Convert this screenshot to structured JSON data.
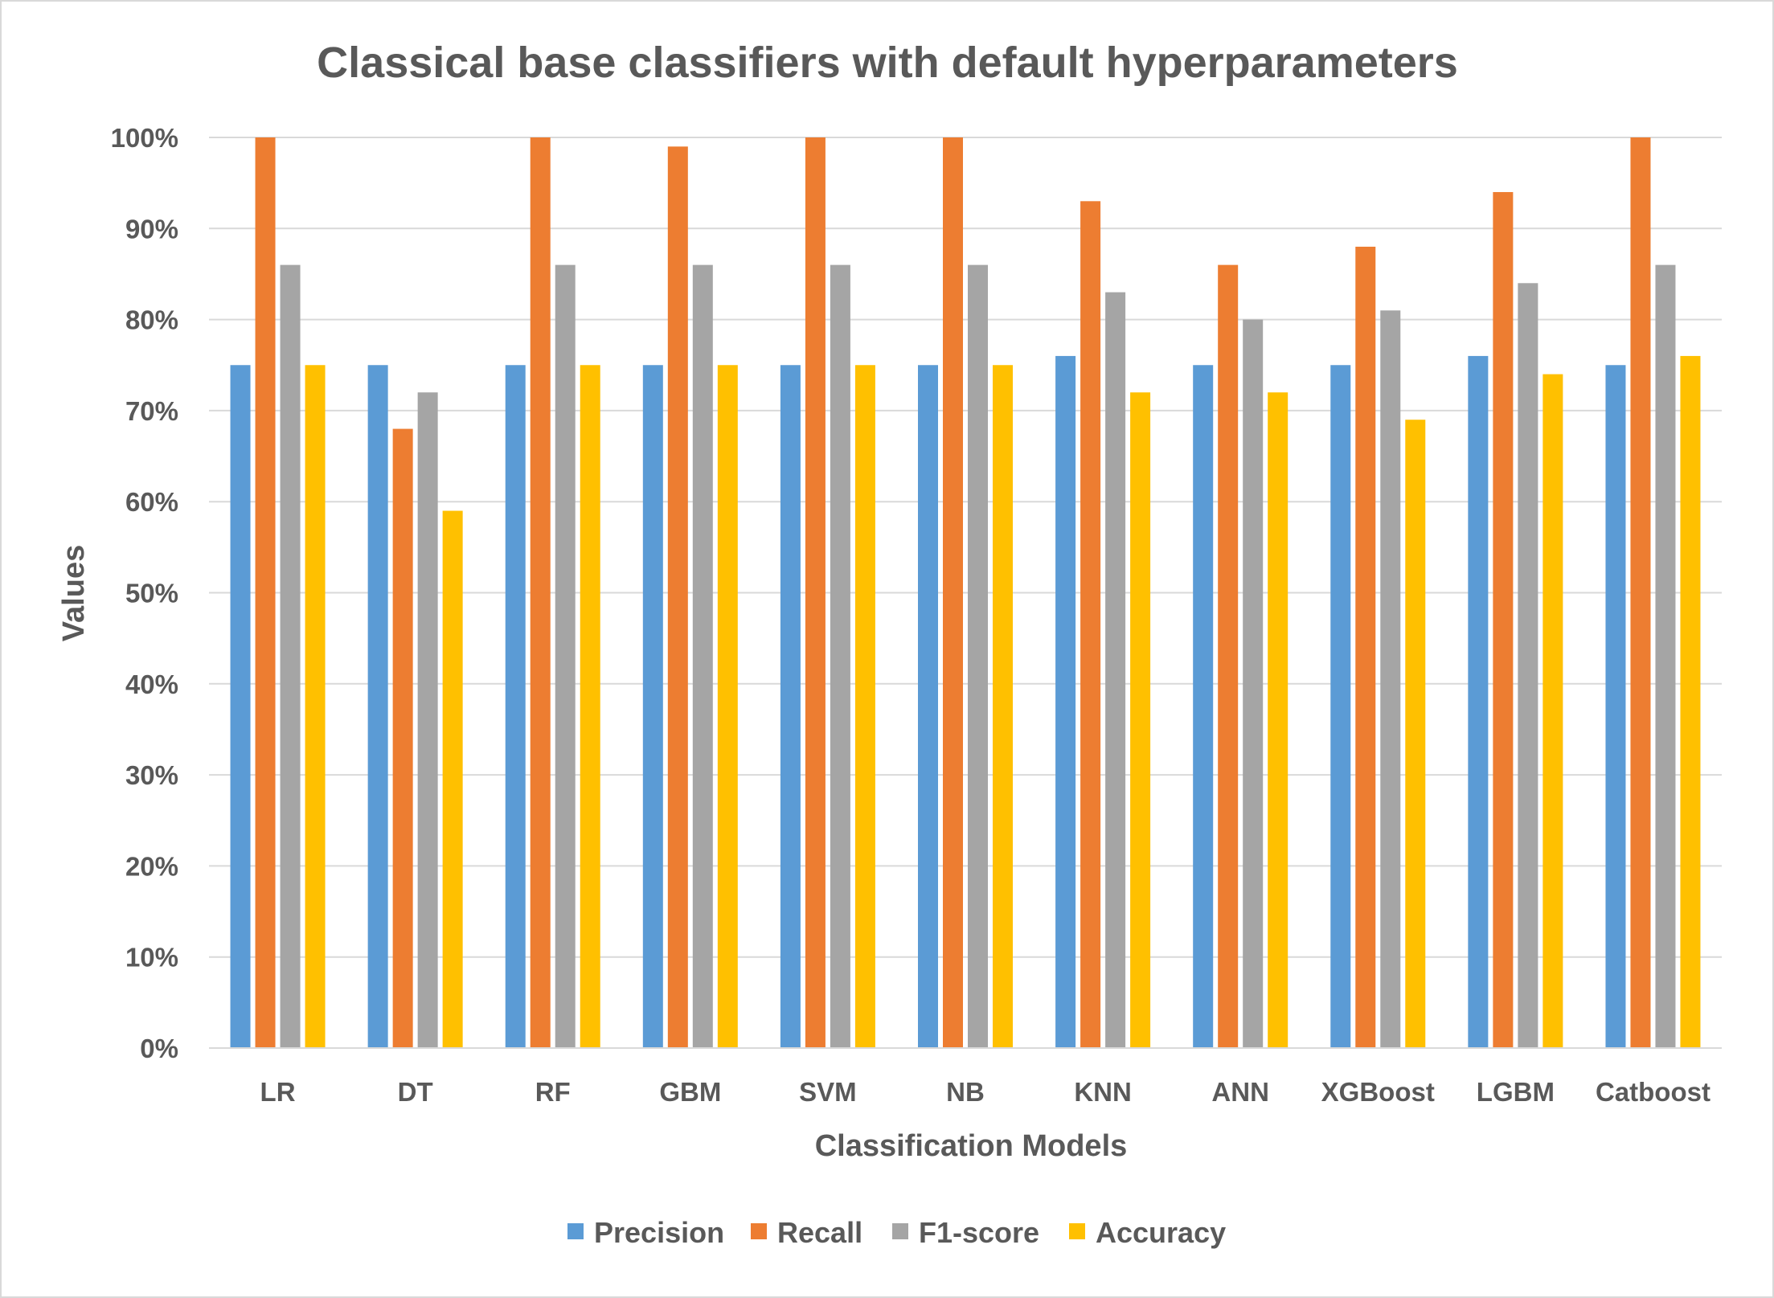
{
  "chart_data": {
    "type": "bar",
    "title": "Classical base classifiers with default hyperparameters",
    "xlabel": "Classification Models",
    "ylabel": "Values",
    "ylim": [
      0,
      100
    ],
    "y_tick_step": 10,
    "y_tick_suffix": "%",
    "grid": true,
    "legend_position": "bottom",
    "categories": [
      "LR",
      "DT",
      "RF",
      "GBM",
      "SVM",
      "NB",
      "KNN",
      "ANN",
      "XGBoost",
      "LGBM",
      "Catboost"
    ],
    "series": [
      {
        "name": "Precision",
        "color": "#5b9bd5",
        "values": [
          75,
          75,
          75,
          75,
          75,
          75,
          76,
          75,
          75,
          76,
          75
        ]
      },
      {
        "name": "Recall",
        "color": "#ed7d31",
        "values": [
          100,
          68,
          100,
          99,
          100,
          100,
          93,
          86,
          88,
          94,
          100
        ]
      },
      {
        "name": "F1-score",
        "color": "#a5a5a5",
        "values": [
          86,
          72,
          86,
          86,
          86,
          86,
          83,
          80,
          81,
          84,
          86
        ]
      },
      {
        "name": "Accuracy",
        "color": "#ffc000",
        "values": [
          75,
          59,
          75,
          75,
          75,
          75,
          72,
          72,
          69,
          74,
          76
        ]
      }
    ]
  }
}
